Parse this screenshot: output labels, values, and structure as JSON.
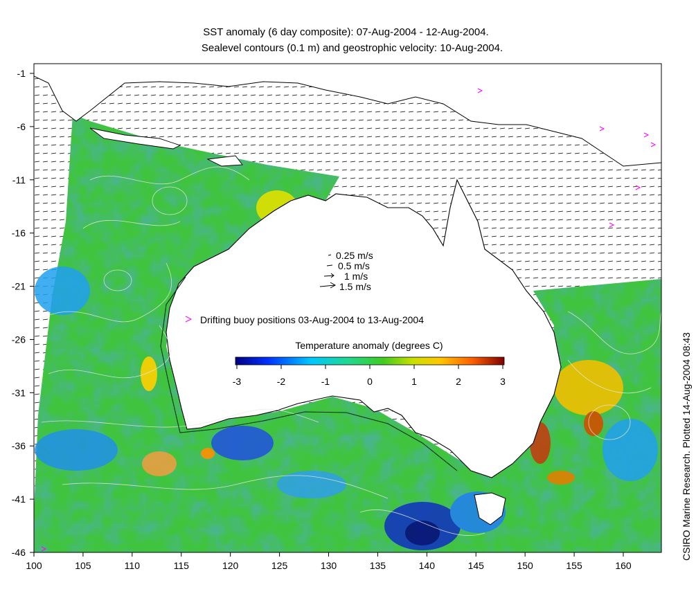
{
  "title": {
    "line1": "SST anomaly (6 day composite): 07-Aug-2004 - 12-Aug-2004.",
    "line2": "Sealevel contours (0.1 m) and geostrophic velocity: 10-Aug-2004."
  },
  "credit": "CSIRO Marine Research. Plotted 14-Aug-2004 08:43",
  "velocity_legend": [
    "0.25 m/s",
    "0.5 m/s",
    "1 m/s",
    "1.5 m/s"
  ],
  "buoy_legend": "Drifting buoy positions 03-Aug-2004 to 13-Aug-2004",
  "colorbar": {
    "title": "Temperature anomaly (degrees C)",
    "min": -3,
    "max": 3,
    "ticks": [
      "-3",
      "-2",
      "-1",
      "0",
      "1",
      "2",
      "3"
    ],
    "colors": [
      "#00007f",
      "#0040ff",
      "#00c0ff",
      "#20e080",
      "#40d020",
      "#c0e000",
      "#ffd000",
      "#ff8000",
      "#c02000",
      "#800000"
    ]
  },
  "axes": {
    "x_ticks": [
      "100",
      "105",
      "110",
      "115",
      "120",
      "125",
      "130",
      "135",
      "140",
      "145",
      "150",
      "155",
      "160"
    ],
    "y_ticks": [
      "-1",
      "-6",
      "-11",
      "-16",
      "-21",
      "-26",
      "-31",
      "-36",
      "-41",
      "-46"
    ],
    "lon_range": [
      100,
      164
    ],
    "lat_range": [
      -46,
      0
    ]
  },
  "colors": {
    "ocean_base": "#3cc83c",
    "land": "#ffffff",
    "buoy": "#ff00ff"
  }
}
